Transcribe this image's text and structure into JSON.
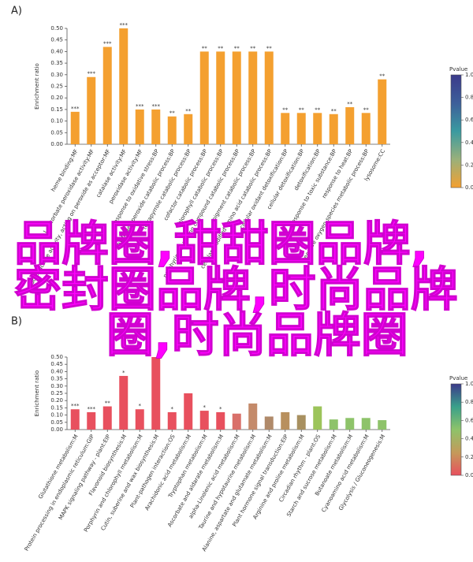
{
  "chart_data": [
    {
      "type": "bar",
      "panel": "A)",
      "ylabel": "Enrichment ratio",
      "categories": [
        "heme binding:MF",
        "L-ascorbate peroxidase activity:MF",
        "oxidoreductase activity, acting on peroxide as acceptor:MF",
        "catalase activity:MF",
        "peroxidase activity:MF",
        "response to oxidative stress:BP",
        "hydrogen peroxide catabolic process:BP",
        "tetrapyrrole catabolic process:BP",
        "cofactor catabolic process:BP",
        "chlorophyll catabolic process:BP",
        "porphyrin-containing compound catabolic process:BP",
        "pigment catabolic process:BP",
        "cellular modified amino acid catabolic process:BP",
        "cellular oxidant detoxification:BP",
        "cellular detoxification:BP",
        "detoxification:BP",
        "response to toxic substance:BP",
        "response to heat:BP",
        "reactive oxygen species metabolic process:BP",
        "lysosome:CC"
      ],
      "values": [
        0.14,
        0.29,
        0.42,
        0.5,
        0.15,
        0.15,
        0.12,
        0.13,
        0.4,
        0.4,
        0.4,
        0.4,
        0.4,
        0.135,
        0.135,
        0.135,
        0.13,
        0.16,
        0.135,
        0.28
      ],
      "annotations": [
        "***",
        "***",
        "***",
        "***",
        "***",
        "***",
        "**",
        "**",
        "**",
        "**",
        "**",
        "**",
        "**",
        "**",
        "**",
        "**",
        "**",
        "**",
        "**",
        "**"
      ],
      "color": "#f4a030",
      "ylim": [
        0,
        0.5
      ],
      "yticks": [
        {
          "value": 0,
          "label": "0.00"
        },
        {
          "value": 0.05,
          "label": "0.05"
        },
        {
          "value": 0.1,
          "label": "0.10"
        },
        {
          "value": 0.15,
          "label": "0.15"
        },
        {
          "value": 0.2,
          "label": "0.20"
        },
        {
          "value": 0.25,
          "label": "0.25"
        },
        {
          "value": 0.3,
          "label": "0.30"
        },
        {
          "value": 0.35,
          "label": "0.35"
        },
        {
          "value": 0.4,
          "label": "0.40"
        },
        {
          "value": 0.45,
          "label": "0.45"
        },
        {
          "value": 0.5,
          "label": "0.50"
        }
      ],
      "colorbar": {
        "title": "Pvalue",
        "lim": [
          0,
          1
        ],
        "colors": [
          "#f4a030",
          "#9ab07a",
          "#3a9aa0",
          "#3d5f9a",
          "#3b3a8a"
        ],
        "ticks": [
          {
            "value": 0,
            "label": "0.0"
          },
          {
            "value": 0.2,
            "label": "0.2"
          },
          {
            "value": 0.4,
            "label": "0.4"
          },
          {
            "value": 0.6,
            "label": "0.6"
          },
          {
            "value": 0.8,
            "label": "0.8"
          },
          {
            "value": 1,
            "label": "1.0"
          }
        ]
      }
    },
    {
      "type": "bar",
      "panel": "B)",
      "ylabel": "Enrichment ratio",
      "categories": [
        "Glutathione metabolism:M",
        "Protein processing in endoplasmic reticulum:GIP",
        "MAPK signaling pathway - plant:EIP",
        "Flavonoid biosynthesis:M",
        "Porphyrin and chlorophyll metabolism:M",
        "Cutin, suberine and wax biosynthesis:M",
        "Plant-pathogen interaction:OS",
        "Arachidonic acid metabolism:M",
        "Tryptophan metabolism:M",
        "Ascorbate and aldarate metabolism:M",
        "alpha-Linolenic acid metabolism:M",
        "Taurine and hypotaurine metabolism:M",
        "Alanine, aspartate and glutamate metabolism:M",
        "Plant hormone signal transduction:EIP",
        "Arginine and proline metabolism:M",
        "Circadian rhythm - plant:OS",
        "Starch and sucrose metabolism:M",
        "Butanoate metabolism:M",
        "Cyanoamino acid metabolism:M",
        "Glycolysis / Gluconeogenesis:M"
      ],
      "values": [
        0.14,
        0.12,
        0.16,
        0.37,
        0.14,
        0.5,
        0.12,
        0.25,
        0.13,
        0.12,
        0.11,
        0.18,
        0.09,
        0.12,
        0.1,
        0.16,
        0.07,
        0.08,
        0.08,
        0.065
      ],
      "annotations": [
        "***",
        "***",
        "**",
        "*",
        "*",
        null,
        "*",
        null,
        "*",
        "*",
        null,
        null,
        null,
        null,
        null,
        null,
        null,
        null,
        null,
        null
      ],
      "colors": [
        "#e8505e",
        "#e8505e",
        "#e8505e",
        "#e8505e",
        "#e8505e",
        "#e8505e",
        "#e8505e",
        "#e8505e",
        "#e8505e",
        "#e8505e",
        "#d9706a",
        "#c48a6a",
        "#b08a6a",
        "#b8905e",
        "#a89060",
        "#9cc45a",
        "#8ec36a",
        "#8ec36a",
        "#8ec36a",
        "#8ec36a"
      ],
      "ylim": [
        0,
        0.5
      ],
      "yticks": [
        {
          "value": 0,
          "label": "0.00"
        },
        {
          "value": 0.05,
          "label": "0.05"
        },
        {
          "value": 0.1,
          "label": "0.10"
        },
        {
          "value": 0.15,
          "label": "0.15"
        },
        {
          "value": 0.2,
          "label": "0.20"
        },
        {
          "value": 0.25,
          "label": "0.25"
        },
        {
          "value": 0.3,
          "label": "0.30"
        },
        {
          "value": 0.35,
          "label": "0.35"
        },
        {
          "value": 0.4,
          "label": "0.40"
        },
        {
          "value": 0.45,
          "label": "0.45"
        },
        {
          "value": 0.5,
          "label": "0.50"
        }
      ],
      "colorbar": {
        "title": "Pvalue",
        "lim": [
          0,
          1
        ],
        "colors": [
          "#e8505e",
          "#c49a5a",
          "#8ec36a",
          "#3aa08a",
          "#3b3a8a"
        ],
        "ticks": [
          {
            "value": 0,
            "label": "0.0"
          },
          {
            "value": 0.2,
            "label": "0.2"
          },
          {
            "value": 0.4,
            "label": "0.4"
          },
          {
            "value": 0.6,
            "label": "0.6"
          },
          {
            "value": 0.8,
            "label": "0.8"
          },
          {
            "value": 1,
            "label": "1.0"
          }
        ]
      }
    }
  ],
  "overlay": {
    "lines": [
      "品牌圈,甜甜圈品牌,",
      "密封圈品牌,时尚品牌",
      "圈,时尚品牌圈"
    ]
  }
}
